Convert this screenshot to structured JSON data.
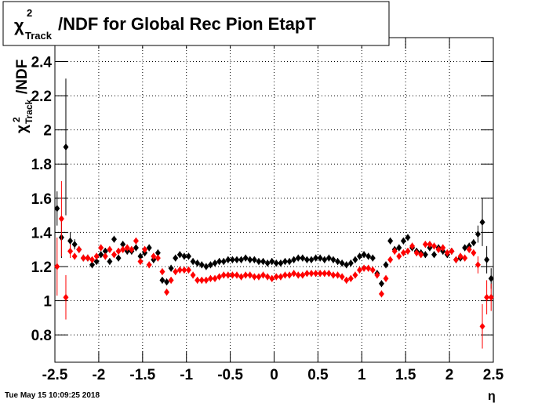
{
  "chart_data": {
    "type": "scatter",
    "title": {
      "symbol": "χ",
      "sup": "2",
      "sub": "Track",
      "text": "/NDF for Global Rec Pion EtapT"
    },
    "y_label": {
      "symbol": "χ",
      "sup": "2",
      "sub": "Track",
      "text": "/NDF"
    },
    "x_label": "η",
    "timestamp": "Tue May 15 10:09:25 2018",
    "xlim": [
      -2.5,
      2.5
    ],
    "ylim": [
      0.64,
      2.54
    ],
    "xticks": [
      -2.5,
      -2,
      -1.5,
      -1,
      -0.5,
      0,
      0.5,
      1,
      1.5,
      2,
      2.5
    ],
    "yticks": [
      0.8,
      1,
      1.2,
      1.4,
      1.6,
      1.8,
      2,
      2.2,
      2.4
    ],
    "grid": true,
    "x": [
      -2.475,
      -2.425,
      -2.375,
      -2.325,
      -2.275,
      -2.225,
      -2.175,
      -2.125,
      -2.075,
      -2.025,
      -1.975,
      -1.925,
      -1.875,
      -1.825,
      -1.775,
      -1.725,
      -1.675,
      -1.625,
      -1.575,
      -1.525,
      -1.475,
      -1.425,
      -1.375,
      -1.325,
      -1.275,
      -1.225,
      -1.175,
      -1.125,
      -1.075,
      -1.025,
      -0.975,
      -0.925,
      -0.875,
      -0.825,
      -0.775,
      -0.725,
      -0.675,
      -0.625,
      -0.575,
      -0.525,
      -0.475,
      -0.425,
      -0.375,
      -0.325,
      -0.275,
      -0.225,
      -0.175,
      -0.125,
      -0.075,
      -0.025,
      0.025,
      0.075,
      0.125,
      0.175,
      0.225,
      0.275,
      0.325,
      0.375,
      0.425,
      0.475,
      0.525,
      0.575,
      0.625,
      0.675,
      0.725,
      0.775,
      0.825,
      0.875,
      0.925,
      0.975,
      1.025,
      1.075,
      1.125,
      1.175,
      1.225,
      1.275,
      1.325,
      1.375,
      1.425,
      1.475,
      1.525,
      1.575,
      1.625,
      1.675,
      1.725,
      1.775,
      1.825,
      1.875,
      1.925,
      1.975,
      2.025,
      2.075,
      2.125,
      2.175,
      2.225,
      2.275,
      2.325,
      2.375,
      2.425,
      2.475
    ],
    "series": [
      {
        "color": "#000000",
        "values": [
          1.54,
          1.37,
          1.9,
          1.35,
          1.33,
          1.3,
          1.25,
          1.25,
          1.21,
          1.23,
          1.27,
          1.29,
          1.23,
          1.36,
          1.25,
          1.33,
          1.29,
          1.29,
          1.31,
          1.26,
          1.28,
          1.31,
          1.24,
          1.28,
          1.12,
          1.11,
          1.19,
          1.25,
          1.27,
          1.26,
          1.26,
          1.23,
          1.22,
          1.21,
          1.2,
          1.21,
          1.22,
          1.23,
          1.23,
          1.24,
          1.24,
          1.24,
          1.24,
          1.25,
          1.24,
          1.24,
          1.23,
          1.23,
          1.22,
          1.23,
          1.22,
          1.22,
          1.23,
          1.23,
          1.24,
          1.25,
          1.25,
          1.24,
          1.24,
          1.25,
          1.25,
          1.24,
          1.25,
          1.24,
          1.23,
          1.22,
          1.21,
          1.22,
          1.24,
          1.26,
          1.27,
          1.26,
          1.25,
          1.16,
          1.1,
          1.21,
          1.35,
          1.3,
          1.31,
          1.35,
          1.37,
          1.31,
          1.29,
          1.28,
          1.27,
          1.31,
          1.27,
          1.31,
          1.29,
          1.27,
          1.29,
          1.24,
          1.25,
          1.31,
          1.32,
          1.34,
          1.39,
          1.46,
          1.24,
          1.13
        ],
        "errors": [
          0.1,
          0.12,
          0.4,
          0.05,
          0.03,
          0.02,
          0.02,
          0.02,
          0.02,
          0.02,
          0.02,
          0.02,
          0.02,
          0.02,
          0.02,
          0.02,
          0.02,
          0.02,
          0.02,
          0.02,
          0.02,
          0.02,
          0.02,
          0.02,
          0.02,
          0.02,
          0.02,
          0.02,
          0.02,
          0.02,
          0.02,
          0.02,
          0.02,
          0.02,
          0.02,
          0.02,
          0.02,
          0.02,
          0.02,
          0.02,
          0.02,
          0.02,
          0.02,
          0.02,
          0.02,
          0.02,
          0.02,
          0.02,
          0.02,
          0.02,
          0.02,
          0.02,
          0.02,
          0.02,
          0.02,
          0.02,
          0.02,
          0.02,
          0.02,
          0.02,
          0.02,
          0.02,
          0.02,
          0.02,
          0.02,
          0.02,
          0.02,
          0.02,
          0.02,
          0.02,
          0.02,
          0.02,
          0.02,
          0.02,
          0.02,
          0.02,
          0.02,
          0.02,
          0.02,
          0.02,
          0.02,
          0.02,
          0.02,
          0.02,
          0.02,
          0.02,
          0.02,
          0.02,
          0.02,
          0.02,
          0.02,
          0.02,
          0.02,
          0.02,
          0.02,
          0.02,
          0.05,
          0.14,
          0.08,
          0.06
        ]
      },
      {
        "color": "#ff0000",
        "values": [
          1.2,
          1.48,
          1.02,
          1.29,
          1.26,
          1.3,
          1.25,
          1.25,
          1.24,
          1.26,
          1.31,
          1.26,
          1.3,
          1.27,
          1.29,
          1.3,
          1.31,
          1.3,
          1.35,
          1.23,
          1.3,
          1.21,
          1.26,
          1.25,
          1.17,
          1.05,
          1.12,
          1.17,
          1.18,
          1.18,
          1.18,
          1.15,
          1.12,
          1.12,
          1.12,
          1.13,
          1.13,
          1.14,
          1.15,
          1.15,
          1.15,
          1.15,
          1.14,
          1.15,
          1.15,
          1.14,
          1.14,
          1.15,
          1.14,
          1.13,
          1.14,
          1.14,
          1.15,
          1.15,
          1.16,
          1.15,
          1.15,
          1.16,
          1.16,
          1.16,
          1.16,
          1.16,
          1.16,
          1.15,
          1.15,
          1.14,
          1.12,
          1.13,
          1.15,
          1.18,
          1.19,
          1.19,
          1.18,
          1.15,
          1.04,
          1.13,
          1.24,
          1.29,
          1.26,
          1.28,
          1.29,
          1.32,
          1.28,
          1.27,
          1.33,
          1.33,
          1.32,
          1.3,
          1.31,
          1.28,
          1.29,
          1.24,
          1.26,
          1.25,
          1.3,
          1.28,
          1.21,
          0.85,
          1.02,
          1.02
        ],
        "errors": [
          0.17,
          0.22,
          0.13,
          0.04,
          0.02,
          0.02,
          0.02,
          0.02,
          0.02,
          0.02,
          0.02,
          0.02,
          0.02,
          0.02,
          0.02,
          0.02,
          0.02,
          0.02,
          0.02,
          0.02,
          0.02,
          0.02,
          0.02,
          0.02,
          0.02,
          0.02,
          0.02,
          0.02,
          0.02,
          0.02,
          0.02,
          0.02,
          0.02,
          0.02,
          0.02,
          0.02,
          0.02,
          0.02,
          0.02,
          0.02,
          0.02,
          0.02,
          0.02,
          0.02,
          0.02,
          0.02,
          0.02,
          0.02,
          0.02,
          0.02,
          0.02,
          0.02,
          0.02,
          0.02,
          0.02,
          0.02,
          0.02,
          0.02,
          0.02,
          0.02,
          0.02,
          0.02,
          0.02,
          0.02,
          0.02,
          0.02,
          0.02,
          0.02,
          0.02,
          0.02,
          0.02,
          0.02,
          0.02,
          0.02,
          0.02,
          0.02,
          0.02,
          0.02,
          0.02,
          0.02,
          0.02,
          0.02,
          0.02,
          0.02,
          0.02,
          0.02,
          0.02,
          0.02,
          0.02,
          0.02,
          0.02,
          0.02,
          0.02,
          0.02,
          0.02,
          0.02,
          0.05,
          0.13,
          0.1,
          0.08
        ]
      }
    ]
  }
}
